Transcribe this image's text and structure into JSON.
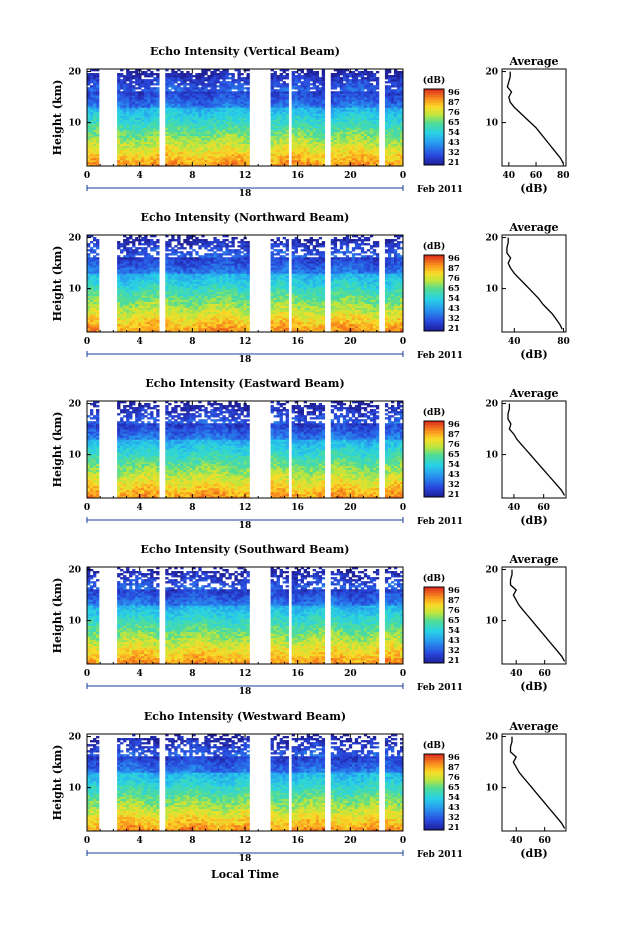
{
  "figure": {
    "xlabel": "Local Time",
    "date_label": "Feb 2011",
    "date_day": "18",
    "ylabel": "Height (km)",
    "average_title": "Average",
    "average_xlabel": "(dB)",
    "colorbar_unit": "(dB)"
  },
  "chart_data": [
    {
      "type": "heatmap",
      "title": "Echo Intensity (Vertical Beam)",
      "x_ticks": [
        "0",
        "4",
        "8",
        "12",
        "16",
        "20",
        "0"
      ],
      "y_ticks": [
        "20",
        "10"
      ],
      "colorbar_ticks": [
        "96",
        "87",
        "76",
        "65",
        "54",
        "43",
        "32",
        "21"
      ],
      "xlim": [
        0,
        24
      ],
      "ylim": [
        1.5,
        20.5
      ],
      "gaps_hours": [
        [
          0.85,
          2.35
        ],
        [
          5.5,
          5.9
        ],
        [
          12.3,
          13.9
        ],
        [
          15.3,
          15.6
        ],
        [
          18.1,
          18.5
        ],
        [
          22.2,
          22.6
        ]
      ],
      "average": {
        "x_ticks": [
          "40",
          "60",
          "80"
        ],
        "xlim": [
          35,
          82
        ],
        "heights_km": [
          2,
          3,
          4,
          5,
          6,
          7,
          8,
          9,
          10,
          11,
          12,
          13,
          14,
          15,
          16,
          17,
          18,
          19,
          20
        ],
        "values_db": [
          80,
          78,
          75,
          72,
          69,
          66,
          63,
          60,
          56,
          52,
          48,
          44,
          41,
          40,
          42,
          39,
          40,
          41,
          41
        ]
      }
    },
    {
      "type": "heatmap",
      "title": "Echo Intensity (Northward Beam)",
      "x_ticks": [
        "0",
        "4",
        "8",
        "12",
        "16",
        "20",
        "0"
      ],
      "y_ticks": [
        "20",
        "10"
      ],
      "colorbar_ticks": [
        "96",
        "87",
        "76",
        "65",
        "54",
        "43",
        "32",
        "21"
      ],
      "xlim": [
        0,
        24
      ],
      "ylim": [
        1.5,
        20.5
      ],
      "gaps_hours": [
        [
          0.85,
          2.35
        ],
        [
          5.5,
          5.9
        ],
        [
          12.3,
          13.9
        ],
        [
          15.3,
          15.6
        ],
        [
          18.1,
          18.5
        ],
        [
          22.2,
          22.6
        ]
      ],
      "average": {
        "x_ticks": [
          "40",
          "80"
        ],
        "xlim": [
          30,
          82
        ],
        "heights_km": [
          2,
          3,
          4,
          5,
          6,
          7,
          8,
          9,
          10,
          11,
          12,
          13,
          14,
          15,
          16,
          17,
          18,
          19,
          20
        ],
        "values_db": [
          79,
          77,
          74,
          71,
          67,
          63,
          60,
          56,
          52,
          48,
          44,
          40,
          37,
          35,
          37,
          34,
          34,
          35,
          35
        ]
      }
    },
    {
      "type": "heatmap",
      "title": "Echo Intensity (Eastward Beam)",
      "x_ticks": [
        "0",
        "4",
        "8",
        "12",
        "16",
        "20",
        "0"
      ],
      "y_ticks": [
        "20",
        "10"
      ],
      "colorbar_ticks": [
        "96",
        "87",
        "76",
        "65",
        "54",
        "43",
        "32",
        "21"
      ],
      "xlim": [
        0,
        24
      ],
      "ylim": [
        1.5,
        20.5
      ],
      "gaps_hours": [
        [
          0.85,
          2.35
        ],
        [
          5.5,
          5.9
        ],
        [
          12.3,
          13.9
        ],
        [
          15.3,
          15.6
        ],
        [
          18.1,
          18.5
        ],
        [
          22.2,
          22.6
        ]
      ],
      "average": {
        "x_ticks": [
          "40",
          "60"
        ],
        "xlim": [
          32,
          75
        ],
        "heights_km": [
          2,
          3,
          4,
          5,
          6,
          7,
          8,
          9,
          10,
          11,
          12,
          13,
          14,
          15,
          16,
          17,
          18,
          19,
          20
        ],
        "values_db": [
          74,
          72,
          69,
          66,
          63,
          60,
          57,
          54,
          51,
          48,
          45,
          42,
          40,
          37,
          38,
          36,
          36,
          37,
          37
        ]
      }
    },
    {
      "type": "heatmap",
      "title": "Echo Intensity (Southward Beam)",
      "x_ticks": [
        "0",
        "4",
        "8",
        "12",
        "16",
        "20",
        "0"
      ],
      "y_ticks": [
        "20",
        "10"
      ],
      "colorbar_ticks": [
        "96",
        "87",
        "76",
        "65",
        "54",
        "43",
        "32",
        "21"
      ],
      "xlim": [
        0,
        24
      ],
      "ylim": [
        1.5,
        20.5
      ],
      "gaps_hours": [
        [
          0.85,
          2.35
        ],
        [
          5.5,
          5.9
        ],
        [
          12.3,
          13.9
        ],
        [
          15.3,
          15.6
        ],
        [
          18.1,
          18.5
        ],
        [
          22.2,
          22.6
        ]
      ],
      "average": {
        "x_ticks": [
          "40",
          "60"
        ],
        "xlim": [
          30,
          75
        ],
        "heights_km": [
          2,
          3,
          4,
          5,
          6,
          7,
          8,
          9,
          10,
          11,
          12,
          13,
          14,
          15,
          16,
          17,
          18,
          19,
          20
        ],
        "values_db": [
          74,
          72,
          69,
          66,
          63,
          60,
          57,
          54,
          51,
          48,
          45,
          42,
          40,
          38,
          40,
          36,
          36,
          37,
          37
        ]
      }
    },
    {
      "type": "heatmap",
      "title": "Echo Intensity (Westward Beam)",
      "x_ticks": [
        "0",
        "4",
        "8",
        "12",
        "16",
        "20",
        "0"
      ],
      "y_ticks": [
        "20",
        "10"
      ],
      "colorbar_ticks": [
        "96",
        "87",
        "76",
        "65",
        "54",
        "43",
        "32",
        "21"
      ],
      "xlim": [
        0,
        24
      ],
      "ylim": [
        1.5,
        20.5
      ],
      "gaps_hours": [
        [
          0.85,
          2.35
        ],
        [
          5.5,
          5.9
        ],
        [
          12.3,
          13.9
        ],
        [
          15.3,
          15.6
        ],
        [
          18.1,
          18.5
        ],
        [
          22.2,
          22.6
        ]
      ],
      "average": {
        "x_ticks": [
          "40",
          "60"
        ],
        "xlim": [
          30,
          75
        ],
        "heights_km": [
          2,
          3,
          4,
          5,
          6,
          7,
          8,
          9,
          10,
          11,
          12,
          13,
          14,
          15,
          16,
          17,
          18,
          19,
          20
        ],
        "values_db": [
          74,
          72,
          69,
          66,
          63,
          60,
          57,
          54,
          51,
          48,
          45,
          42,
          40,
          38,
          40,
          36,
          36,
          37,
          37
        ]
      }
    }
  ]
}
